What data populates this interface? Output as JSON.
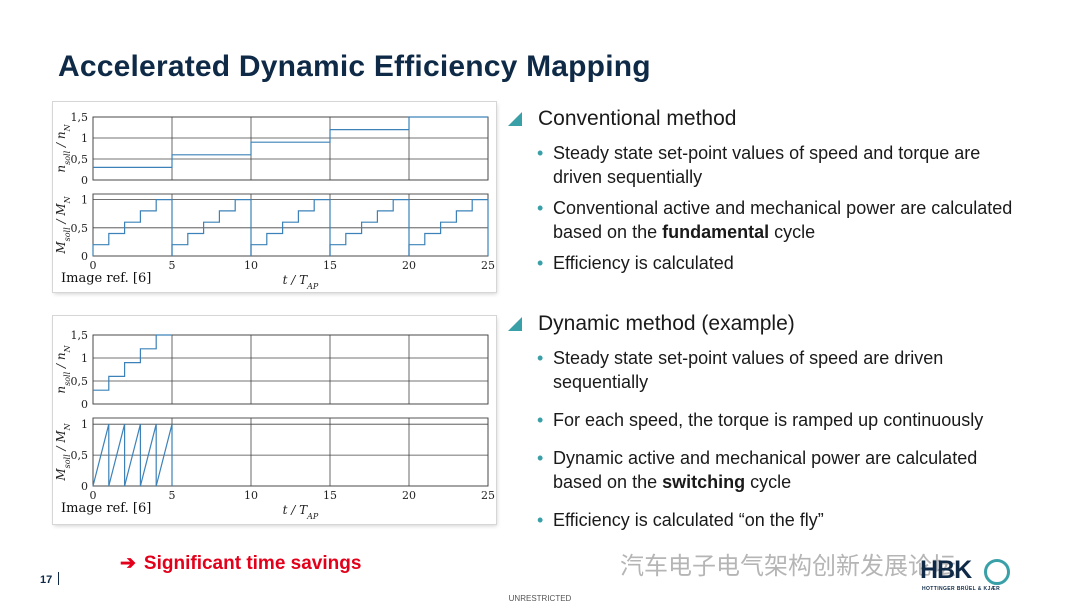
{
  "slide": {
    "title": "Accelerated Dynamic Efficiency Mapping",
    "page_number": "17",
    "classification": "UNRESTRICTED",
    "highlight": "Significant time savings",
    "watermark": "汽车电子电气架构创新发展论坛",
    "logo": {
      "text": "HBK",
      "subtitle": "HOTTINGER BRÜEL & KJÆR"
    }
  },
  "sections": [
    {
      "heading": "Conventional method",
      "bullets": [
        {
          "parts": [
            {
              "t": "Steady state set-point values of speed and torque are driven sequentially"
            }
          ]
        },
        {
          "parts": [
            {
              "t": "Conventional active and mechanical power are calculated based on the "
            },
            {
              "t": "fundamental",
              "b": true
            },
            {
              "t": " cycle"
            }
          ]
        },
        {
          "parts": [
            {
              "t": "Efficiency is calculated"
            }
          ]
        }
      ]
    },
    {
      "heading": "Dynamic method (example)",
      "bullets": [
        {
          "parts": [
            {
              "t": "Steady state set-point values of speed are driven sequentially"
            }
          ]
        },
        {
          "parts": [
            {
              "t": "For each speed, the torque is ramped up continuously"
            }
          ]
        },
        {
          "parts": [
            {
              "t": "Dynamic active and mechanical power are calculated based on the "
            },
            {
              "t": "switching",
              "b": true
            },
            {
              "t": " cycle"
            }
          ]
        },
        {
          "parts": [
            {
              "t": "Efficiency is calculated “on the fly”"
            }
          ]
        }
      ]
    }
  ],
  "chart_data": [
    {
      "type": "line",
      "figure": "conventional",
      "caption": "Image ref. [6]",
      "xlabel": "t / T_AP",
      "xlim": [
        0,
        25
      ],
      "xticks": [
        0,
        5,
        10,
        15,
        20,
        25
      ],
      "line_color": "#3c82b8",
      "subplots": [
        {
          "ylabel": "n_soll / n_N",
          "ylim": [
            0,
            1.5
          ],
          "yticks": [
            0,
            0.5,
            1,
            1.5
          ],
          "ytick_labels": [
            "0",
            "0,5",
            "1",
            "1,5"
          ],
          "points": [
            [
              0,
              0.3
            ],
            [
              5,
              0.3
            ],
            [
              5,
              0.6
            ],
            [
              10,
              0.6
            ],
            [
              10,
              0.9
            ],
            [
              15,
              0.9
            ],
            [
              15,
              1.2
            ],
            [
              20,
              1.2
            ],
            [
              20,
              1.5
            ],
            [
              25,
              1.5
            ]
          ]
        },
        {
          "ylabel": "M_soll / M_N",
          "ylim": [
            0,
            1.1
          ],
          "yticks": [
            0,
            0.5,
            1
          ],
          "ytick_labels": [
            "0",
            "0,5",
            "1"
          ],
          "segment_length": 5,
          "segment_steps": [
            0.2,
            0.4,
            0.6,
            0.8,
            1.0
          ]
        }
      ]
    },
    {
      "type": "line",
      "figure": "dynamic",
      "caption": "Image ref. [6]",
      "xlabel": "t / T_AP",
      "xlim": [
        0,
        25
      ],
      "xticks": [
        0,
        5,
        10,
        15,
        20,
        25
      ],
      "line_color": "#3c82b8",
      "subplots": [
        {
          "ylabel": "n_soll / n_N",
          "ylim": [
            0,
            1.5
          ],
          "yticks": [
            0,
            0.5,
            1,
            1.5
          ],
          "ytick_labels": [
            "0",
            "0,5",
            "1",
            "1,5"
          ],
          "points": [
            [
              0,
              0.3
            ],
            [
              1,
              0.3
            ],
            [
              1,
              0.6
            ],
            [
              2,
              0.6
            ],
            [
              2,
              0.9
            ],
            [
              3,
              0.9
            ],
            [
              3,
              1.2
            ],
            [
              4,
              1.2
            ],
            [
              4,
              1.5
            ],
            [
              5,
              1.5
            ]
          ]
        },
        {
          "ylabel": "M_soll / M_N",
          "ylim": [
            0,
            1.1
          ],
          "yticks": [
            0,
            0.5,
            1
          ],
          "ytick_labels": [
            "0",
            "0,5",
            "1"
          ],
          "ramps": [
            [
              0,
              1
            ],
            [
              1,
              2
            ],
            [
              2,
              3
            ],
            [
              3,
              4
            ],
            [
              4,
              5
            ]
          ],
          "ramp_peak": 1.0
        }
      ]
    }
  ]
}
